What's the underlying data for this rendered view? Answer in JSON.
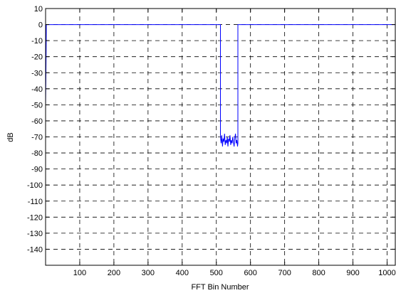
{
  "chart_data": {
    "type": "line",
    "title": "",
    "xlabel": "FFT Bin Number",
    "ylabel": "dB",
    "xlim": [
      0,
      1024
    ],
    "ylim": [
      -150,
      10
    ],
    "xticks": [
      100,
      200,
      300,
      400,
      500,
      600,
      700,
      800,
      900,
      1000
    ],
    "yticks": [
      10,
      0,
      -10,
      -20,
      -30,
      -40,
      -50,
      -60,
      -70,
      -80,
      -90,
      -100,
      -110,
      -120,
      -130,
      -140
    ],
    "xtick_labels": [
      "100",
      "200",
      "300",
      "400",
      "500",
      "600",
      "700",
      "800",
      "900",
      "1000"
    ],
    "ytick_labels": [
      "10",
      "0",
      "-10",
      "-20",
      "-30",
      "-40",
      "-50",
      "-60",
      "-70",
      "-80",
      "-90",
      "-100",
      "-110",
      "-120",
      "-130",
      "-140"
    ],
    "grid": true,
    "line_color": "#0000ff",
    "series": [
      {
        "x": [
          0,
          1,
          2,
          2,
          512,
          512,
          514,
          516,
          518,
          520,
          522,
          524,
          526,
          528,
          530,
          532,
          534,
          536,
          538,
          540,
          542,
          544,
          546,
          548,
          550,
          552,
          554,
          556,
          558,
          560,
          562,
          563,
          563,
          1024
        ],
        "y": [
          -50,
          -30,
          -5,
          0,
          0,
          -70,
          -74,
          -69,
          -76,
          -71,
          -73,
          -68,
          -75,
          -72,
          -74,
          -70,
          -76,
          -71,
          -73,
          -69,
          -75,
          -72,
          -74,
          -70,
          -73,
          -76,
          -71,
          -68,
          -74,
          -72,
          -76,
          -74,
          0,
          0
        ]
      }
    ]
  }
}
